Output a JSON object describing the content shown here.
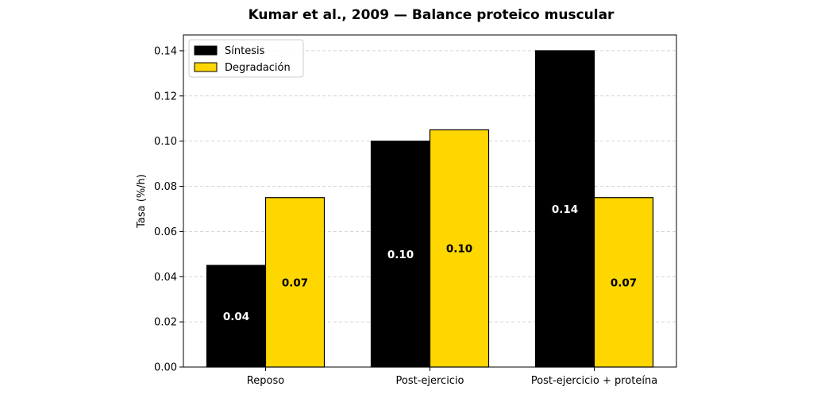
{
  "chart_data": {
    "type": "bar",
    "title": "Kumar et al., 2009 — Balance proteico muscular",
    "xlabel": "",
    "ylabel": "Tasa (%/h)",
    "categories": [
      "Reposo",
      "Post-ejercicio",
      "Post-ejercicio + proteína"
    ],
    "series": [
      {
        "name": "Síntesis",
        "color": "#000000",
        "label_color": "#ffffff",
        "values": [
          0.045,
          0.1,
          0.14
        ],
        "labels": [
          "0.04",
          "0.10",
          "0.14"
        ]
      },
      {
        "name": "Degradación",
        "color": "#FFD700",
        "label_color": "#000000",
        "values": [
          0.075,
          0.105,
          0.075
        ],
        "labels": [
          "0.07",
          "0.10",
          "0.07"
        ]
      }
    ],
    "ylim": [
      0,
      0.147
    ],
    "yticks": [
      "0.00",
      "0.02",
      "0.04",
      "0.06",
      "0.08",
      "0.10",
      "0.12",
      "0.14"
    ],
    "grid": "y-dashed",
    "legend_position": "top-left"
  }
}
